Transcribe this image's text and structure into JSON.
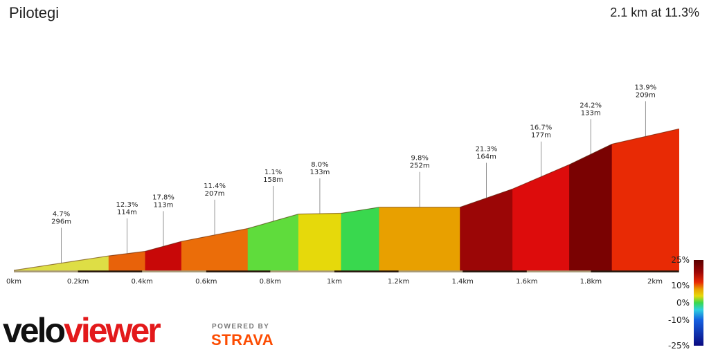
{
  "header": {
    "title": "Pilotegi",
    "summary": "2.1 km at 11.3%"
  },
  "branding": {
    "velo": "velo",
    "viewer": "viewer",
    "powered_by": "POWERED BY",
    "strava": "STRAVA"
  },
  "chart_data": {
    "type": "area",
    "x_unit": "km",
    "xlim": [
      0,
      2.1
    ],
    "x_tick_labels": [
      "0km",
      "0.2km",
      "0.4km",
      "0.6km",
      "0.8km",
      "1km",
      "1.2km",
      "1.4km",
      "1.6km",
      "1.8km",
      "2km"
    ],
    "x_ticks": [
      0,
      0.2,
      0.4,
      0.6,
      0.8,
      1.0,
      1.2,
      1.4,
      1.6,
      1.8,
      2.0
    ],
    "elevation_gain_m": [
      0,
      19,
      25,
      38,
      55,
      74,
      75,
      83,
      83,
      107,
      139,
      166,
      186,
      219
    ],
    "segments": [
      {
        "start_km": 0.0,
        "end_km": 0.296,
        "gradient_pct": 4.7,
        "length": "296m",
        "label": "4.7%",
        "color": "#dede45"
      },
      {
        "start_km": 0.296,
        "end_km": 0.41,
        "gradient_pct": 12.3,
        "length": "114m",
        "label": "12.3%",
        "color": "#e8620a"
      },
      {
        "start_km": 0.41,
        "end_km": 0.523,
        "gradient_pct": 17.8,
        "length": "113m",
        "label": "17.8%",
        "color": "#c80808"
      },
      {
        "start_km": 0.523,
        "end_km": 0.73,
        "gradient_pct": 11.4,
        "length": "207m",
        "label": "11.4%",
        "color": "#eb6d09"
      },
      {
        "start_km": 0.73,
        "end_km": 0.888,
        "gradient_pct": 1.1,
        "length": "158m",
        "label": "1.1%",
        "color": "#5fdc3c"
      },
      {
        "start_km": 0.888,
        "end_km": 1.021,
        "gradient_pct": 8.0,
        "length": "133m",
        "label": "8.0%",
        "color": "#e6d90b"
      },
      {
        "start_km": 1.021,
        "end_km": 1.14,
        "gradient_pct": null,
        "length": "",
        "label": "",
        "color": "#39d84e"
      },
      {
        "start_km": 1.14,
        "end_km": 1.392,
        "gradient_pct": 9.8,
        "length": "252m",
        "label": "9.8%",
        "color": "#e8a000"
      },
      {
        "start_km": 1.392,
        "end_km": 1.556,
        "gradient_pct": 21.3,
        "length": "164m",
        "label": "21.3%",
        "color": "#9b0606"
      },
      {
        "start_km": 1.556,
        "end_km": 1.733,
        "gradient_pct": 16.7,
        "length": "177m",
        "label": "16.7%",
        "color": "#dd0c0c"
      },
      {
        "start_km": 1.733,
        "end_km": 1.866,
        "gradient_pct": 24.2,
        "length": "133m",
        "label": "24.2%",
        "color": "#7a0202"
      },
      {
        "start_km": 1.866,
        "end_km": 2.075,
        "gradient_pct": 13.9,
        "length": "209m",
        "label": "13.9%",
        "color": "#e82a05"
      }
    ],
    "legend": {
      "tick_labels": [
        "25%",
        "10%",
        "0%",
        "-10%",
        "-25%"
      ],
      "tick_values": [
        25,
        10,
        0,
        -10,
        -25
      ],
      "stops": [
        {
          "value": 25,
          "color": "#5a0000"
        },
        {
          "value": 18,
          "color": "#9b0606"
        },
        {
          "value": 12,
          "color": "#e82a05"
        },
        {
          "value": 8,
          "color": "#e8a000"
        },
        {
          "value": 4,
          "color": "#e6d90b"
        },
        {
          "value": 0,
          "color": "#39d84e"
        },
        {
          "value": -4,
          "color": "#2fd0e0"
        },
        {
          "value": -10,
          "color": "#1560e0"
        },
        {
          "value": -25,
          "color": "#0a0a80"
        }
      ]
    }
  }
}
